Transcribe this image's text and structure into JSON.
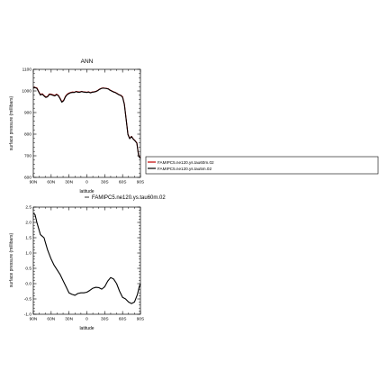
{
  "chart_data": [
    {
      "type": "line",
      "title": "ANN",
      "xlabel": "latitude",
      "ylabel": "surface pressure (millibars)",
      "xlim": [
        90,
        -90
      ],
      "ylim": [
        600,
        1100
      ],
      "xticks": [
        90,
        60,
        30,
        0,
        -30,
        -60,
        -90
      ],
      "xtick_labels": [
        "90N",
        "60N",
        "30N",
        "0",
        "30S",
        "60S",
        "90S"
      ],
      "yticks": [
        600,
        700,
        800,
        900,
        1000,
        1100
      ],
      "ytick_labels": [
        "600",
        "700",
        "800",
        "900",
        "1000",
        "1100"
      ],
      "grid": false,
      "legend": "right",
      "series": [
        {
          "name": "FAMIPC5.ne120.ys.tau60m.02",
          "color": "#c00000",
          "x": [
            90,
            87,
            84,
            81,
            78,
            75,
            72,
            69,
            66,
            63,
            60,
            57,
            54,
            51,
            48,
            45,
            42,
            39,
            36,
            33,
            30,
            27,
            24,
            21,
            18,
            15,
            12,
            9,
            6,
            3,
            0,
            -3,
            -6,
            -9,
            -12,
            -15,
            -18,
            -21,
            -24,
            -27,
            -30,
            -33,
            -36,
            -39,
            -42,
            -45,
            -48,
            -51,
            -54,
            -57,
            -60,
            -63,
            -66,
            -69,
            -72,
            -75,
            -78,
            -81,
            -84,
            -87,
            -90
          ],
          "y": [
            1015,
            1016,
            1014,
            998,
            983,
            987,
            979,
            972,
            975,
            986,
            985,
            982,
            979,
            985,
            980,
            966,
            950,
            957,
            975,
            985,
            990,
            993,
            995,
            994,
            998,
            996,
            995,
            998,
            996,
            995,
            994,
            996,
            992,
            995,
            996,
            998,
            1002,
            1008,
            1012,
            1014,
            1013,
            1012,
            1010,
            1004,
            1000,
            996,
            993,
            988,
            983,
            980,
            973,
            940,
            870,
            800,
            780,
            790,
            778,
            770,
            760,
            700,
            690
          ]
        },
        {
          "name": "FAMIPC5.ne120.ys.tau5m.02",
          "color": "#000000",
          "x": [
            90,
            87,
            84,
            81,
            78,
            75,
            72,
            69,
            66,
            63,
            60,
            57,
            54,
            51,
            48,
            45,
            42,
            39,
            36,
            33,
            30,
            27,
            24,
            21,
            18,
            15,
            12,
            9,
            6,
            3,
            0,
            -3,
            -6,
            -9,
            -12,
            -15,
            -18,
            -21,
            -24,
            -27,
            -30,
            -33,
            -36,
            -39,
            -42,
            -45,
            -48,
            -51,
            -54,
            -57,
            -60,
            -63,
            -66,
            -69,
            -72,
            -75,
            -78,
            -81,
            -84,
            -87,
            -90
          ],
          "y": [
            1013,
            1015,
            1012,
            996,
            981,
            985,
            977,
            970,
            973,
            984,
            983,
            980,
            977,
            983,
            978,
            964,
            948,
            955,
            973,
            983,
            988,
            992,
            993,
            993,
            997,
            994,
            994,
            997,
            995,
            994,
            993,
            995,
            991,
            994,
            995,
            997,
            1001,
            1007,
            1011,
            1013,
            1012,
            1011,
            1009,
            1003,
            999,
            995,
            992,
            987,
            982,
            979,
            971,
            938,
            868,
            798,
            779,
            789,
            777,
            769,
            758,
            698,
            688
          ]
        }
      ]
    },
    {
      "type": "line",
      "title": "",
      "xlabel": "latitude",
      "ylabel": "surface pressure (millibars)",
      "xlim": [
        90,
        -90
      ],
      "ylim": [
        -1.0,
        2.5
      ],
      "xticks": [
        90,
        60,
        30,
        0,
        -30,
        -60,
        -90
      ],
      "xtick_labels": [
        "90N",
        "60N",
        "30N",
        "0",
        "30S",
        "60S",
        "90S"
      ],
      "yticks": [
        -1.0,
        -0.5,
        0.0,
        0.5,
        1.0,
        1.5,
        2.0,
        2.5
      ],
      "ytick_labels": [
        "-1.0",
        "-0.5",
        "0.0",
        "0.5",
        "1.0",
        "1.5",
        "2.0",
        "2.5"
      ],
      "grid": false,
      "legend": "top-right",
      "series": [
        {
          "name": "FAMIPC5.ne120.ys.tau60m.02",
          "color": "#000000",
          "x": [
            90,
            87,
            84,
            81,
            78,
            75,
            72,
            69,
            66,
            63,
            60,
            55,
            50,
            45,
            40,
            35,
            30,
            25,
            20,
            15,
            10,
            5,
            0,
            -5,
            -10,
            -15,
            -20,
            -25,
            -30,
            -35,
            -40,
            -45,
            -50,
            -55,
            -60,
            -65,
            -70,
            -75,
            -80,
            -85,
            -88,
            -90
          ],
          "y": [
            2.3,
            2.25,
            2.0,
            1.8,
            1.6,
            1.55,
            1.5,
            1.3,
            1.1,
            0.95,
            0.8,
            0.6,
            0.45,
            0.3,
            0.1,
            -0.1,
            -0.3,
            -0.35,
            -0.38,
            -0.32,
            -0.3,
            -0.3,
            -0.28,
            -0.22,
            -0.15,
            -0.12,
            -0.13,
            -0.18,
            -0.1,
            0.08,
            0.2,
            0.15,
            0.0,
            -0.25,
            -0.45,
            -0.5,
            -0.6,
            -0.65,
            -0.6,
            -0.35,
            -0.1,
            0.0
          ]
        }
      ]
    }
  ]
}
